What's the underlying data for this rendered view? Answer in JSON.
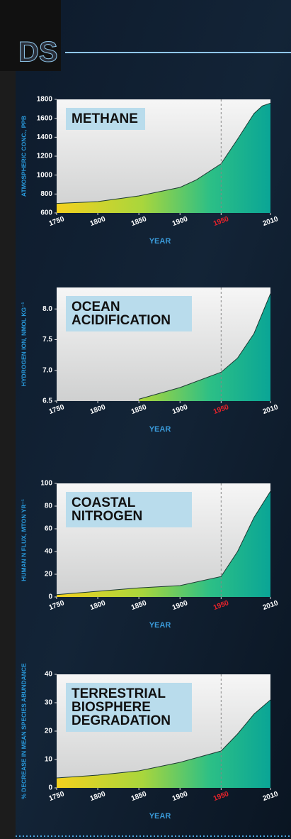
{
  "header": {
    "title": "DS"
  },
  "chart_data": [
    {
      "type": "area",
      "title": "METHANE",
      "ylabel": "ATMOSPHERIC CONC., PPB",
      "xlabel": "YEAR",
      "x": [
        1750,
        1800,
        1850,
        1900,
        1920,
        1950,
        1970,
        1990,
        2000,
        2010
      ],
      "values": [
        700,
        720,
        780,
        870,
        950,
        1120,
        1380,
        1650,
        1730,
        1760
      ],
      "xlim": [
        1750,
        2010
      ],
      "ylim": [
        600,
        1800
      ],
      "xticks": [
        1750,
        1800,
        1850,
        1900,
        1950,
        2010
      ],
      "yticks": [
        600,
        800,
        1000,
        1200,
        1400,
        1600,
        1800
      ],
      "vline": 1950,
      "vline_color": "#e8232b"
    },
    {
      "type": "area",
      "title": "OCEAN ACIDIFICATION",
      "ylabel": "HYDROGEN ION, NMOL KG⁻¹",
      "xlabel": "YEAR",
      "x": [
        1850,
        1900,
        1950,
        1970,
        1990,
        2010
      ],
      "values": [
        6.53,
        6.72,
        6.97,
        7.2,
        7.6,
        8.25
      ],
      "xlim": [
        1750,
        2010
      ],
      "ylim": [
        6.5,
        8.35
      ],
      "xticks": [
        1750,
        1800,
        1850,
        1900,
        1950,
        2010
      ],
      "yticks": [
        {
          "value": 6.5,
          "label": "6.5"
        },
        {
          "value": 7,
          "label": "7.0"
        },
        {
          "value": 7.5,
          "label": "7.5"
        },
        {
          "value": 8,
          "label": "8.0"
        }
      ],
      "vline": 1950,
      "vline_color": "#e8232b"
    },
    {
      "type": "area",
      "title": "COASTAL NITROGEN",
      "ylabel": "HUMAN N FLUX, MTON YR⁻¹",
      "xlabel": "YEAR",
      "x": [
        1750,
        1800,
        1850,
        1900,
        1950,
        1970,
        1990,
        2010
      ],
      "values": [
        2,
        5,
        8,
        10,
        18,
        40,
        70,
        93
      ],
      "xlim": [
        1750,
        2010
      ],
      "ylim": [
        0,
        100
      ],
      "xticks": [
        1750,
        1800,
        1850,
        1900,
        1950,
        2010
      ],
      "yticks": [
        0,
        20,
        40,
        60,
        80,
        100
      ],
      "vline": 1950,
      "vline_color": "#e8232b"
    },
    {
      "type": "area",
      "title": "TERRESTRIAL BIOSPHERE DEGRADATION",
      "ylabel": "% DECREASE IN MEAN SPECIES ABUNDANCE",
      "xlabel": "YEAR",
      "x": [
        1750,
        1800,
        1850,
        1900,
        1950,
        1970,
        1990,
        2010
      ],
      "values": [
        3.5,
        4.5,
        6,
        9,
        13,
        19,
        26,
        31
      ],
      "xlim": [
        1750,
        2010
      ],
      "ylim": [
        0,
        40
      ],
      "xticks": [
        1750,
        1800,
        1850,
        1900,
        1950,
        2010
      ],
      "yticks": [
        0,
        10,
        20,
        30,
        40
      ],
      "vline": 1950,
      "vline_color": "#e8232b"
    }
  ]
}
